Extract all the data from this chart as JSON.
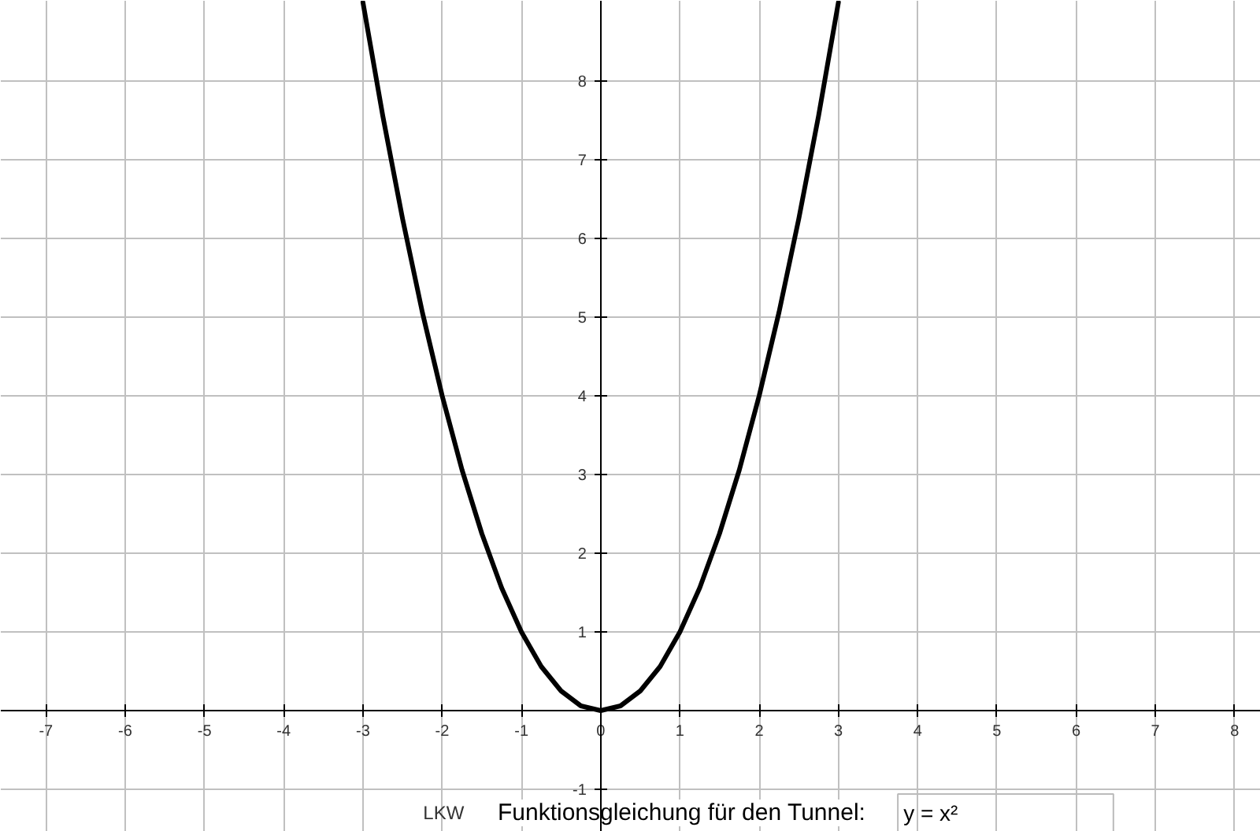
{
  "chart_data": {
    "type": "line",
    "x": [
      -3,
      -2.75,
      -2.5,
      -2.25,
      -2,
      -1.75,
      -1.5,
      -1.25,
      -1,
      -0.75,
      -0.5,
      -0.25,
      0,
      0.25,
      0.5,
      0.75,
      1,
      1.25,
      1.5,
      1.75,
      2,
      2.25,
      2.5,
      2.75,
      3
    ],
    "series": [
      {
        "color": "#000000",
        "values": [
          9,
          7.56,
          6.25,
          5.06,
          4,
          3.06,
          2.25,
          1.56,
          1,
          0.56,
          0.25,
          0.06,
          0,
          0.06,
          0.25,
          0.56,
          1,
          1.56,
          2.25,
          3.06,
          4,
          5.06,
          6.25,
          7.56,
          9
        ]
      }
    ],
    "xlim": [
      -7.57,
      8.33
    ],
    "ylim": [
      -1.54,
      9.02
    ],
    "xticks": [
      -7,
      -6,
      -5,
      -4,
      -3,
      -2,
      -1,
      0,
      1,
      2,
      3,
      4,
      5,
      6,
      7,
      8
    ],
    "yticks": [
      -1,
      1,
      2,
      3,
      4,
      5,
      6,
      7,
      8
    ],
    "grid": true,
    "marker": "none",
    "line_style": "solid",
    "annotations": [
      "LKW",
      "Funktionsgleichung für den Tunnel:",
      "y = x²"
    ]
  }
}
